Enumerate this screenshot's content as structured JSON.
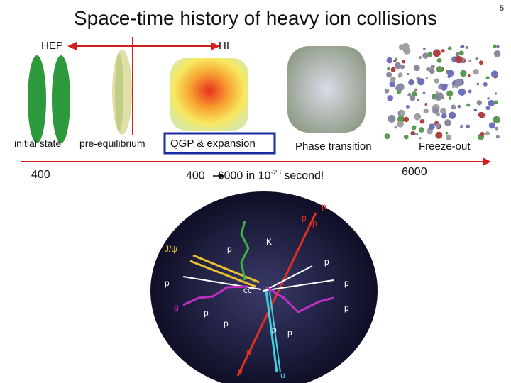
{
  "header": {
    "title": "Space-time history of heavy ion collisions",
    "page_number": "5"
  },
  "labels": {
    "hep": "HEP",
    "hi": "HI"
  },
  "stages": [
    "initial state",
    "pre-equilibrium",
    "QGP & expansion",
    "Phase transition",
    "Freeze-out"
  ],
  "multiplicity": {
    "start": "400",
    "range_start": "400",
    "range_middle": "6000 in 10",
    "exponent": "-23",
    "range_end": " second!",
    "end": "6000"
  },
  "collision_labels": [
    "p",
    "p",
    "p",
    "K",
    "p",
    "J/ψ",
    "p",
    "p",
    "p",
    "g",
    "p",
    "p",
    "p",
    "p",
    "p",
    "p",
    "p",
    "u",
    "cc"
  ]
}
